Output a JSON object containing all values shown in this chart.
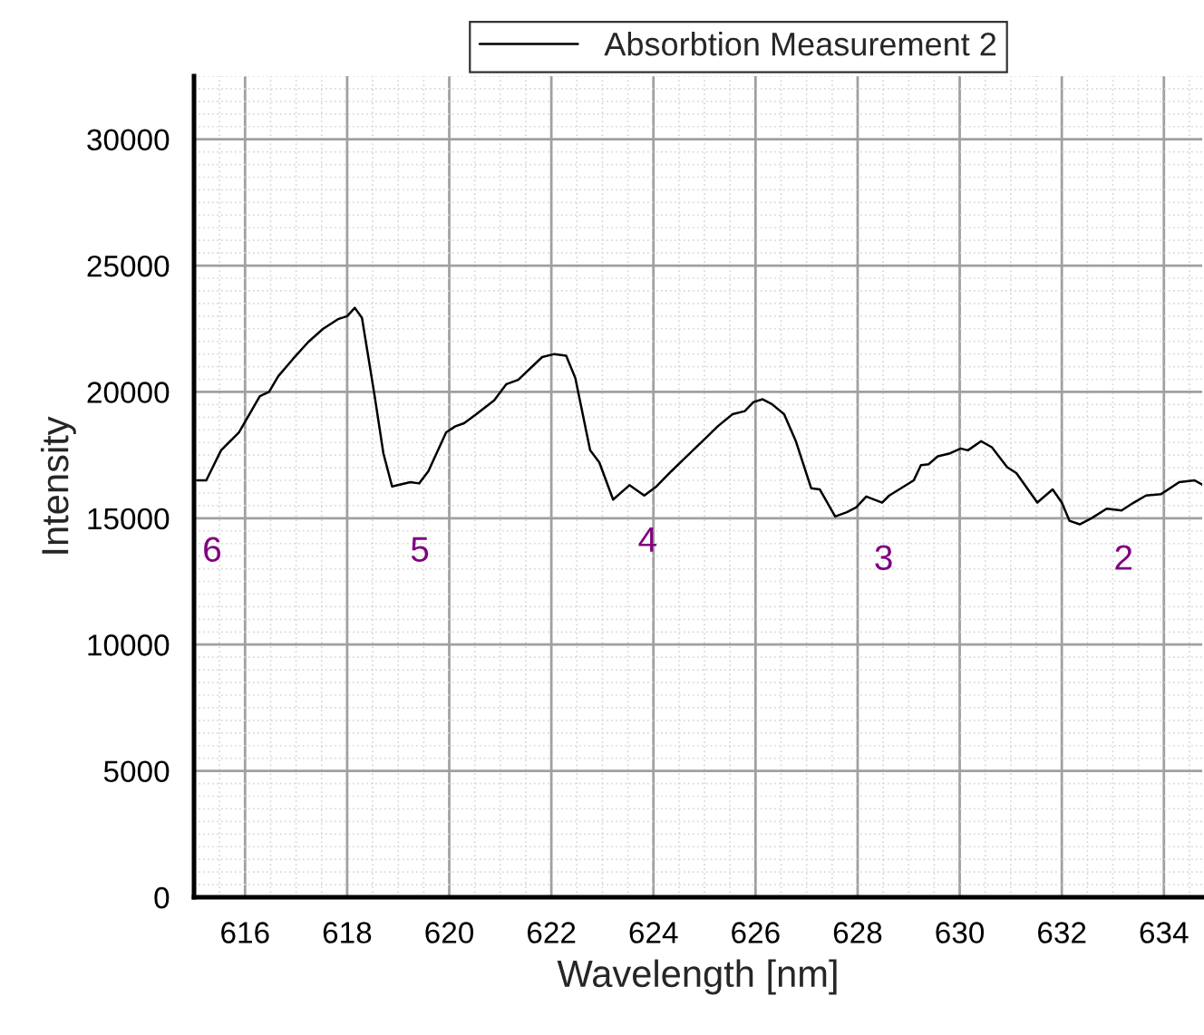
{
  "chart_data": {
    "type": "line",
    "xlabel": "Wavelength [nm]",
    "ylabel": "Intensity",
    "xlim": [
      615,
      634.75
    ],
    "ylim": [
      0,
      32500
    ],
    "xticks": [
      616,
      618,
      620,
      622,
      624,
      626,
      628,
      630,
      632,
      634
    ],
    "yticks": [
      0,
      5000,
      10000,
      15000,
      20000,
      25000,
      30000
    ],
    "grid": true,
    "legend": "top",
    "marker": "none",
    "line_style": "solid",
    "series": [
      {
        "name": "Absorbtion Measurement 2",
        "color": "#000000",
        "x": [
          615.06,
          615.24,
          615.53,
          615.88,
          616.29,
          616.47,
          616.65,
          616.94,
          617.24,
          617.53,
          617.82,
          618.0,
          618.15,
          618.29,
          618.53,
          618.71,
          618.88,
          619.24,
          619.41,
          619.59,
          619.94,
          620.12,
          620.29,
          620.53,
          620.88,
          621.12,
          621.35,
          621.82,
          622.06,
          622.29,
          622.47,
          622.76,
          622.94,
          623.21,
          623.53,
          623.82,
          624.06,
          624.35,
          624.65,
          624.96,
          625.26,
          625.55,
          625.79,
          625.96,
          626.14,
          626.32,
          626.56,
          626.79,
          627.09,
          627.26,
          627.56,
          627.79,
          627.97,
          628.17,
          628.48,
          628.62,
          629.1,
          629.24,
          629.39,
          629.57,
          629.81,
          630.02,
          630.16,
          630.42,
          630.63,
          630.93,
          631.11,
          631.52,
          631.82,
          632.0,
          632.15,
          632.35,
          632.58,
          632.88,
          633.17,
          633.41,
          633.65,
          633.94,
          634.3,
          634.6,
          634.75
        ],
        "values": [
          16500,
          16500,
          17690,
          18400,
          19830,
          20000,
          20620,
          21310,
          21980,
          22500,
          22880,
          23000,
          23330,
          22930,
          19950,
          17570,
          16260,
          16430,
          16380,
          16860,
          18400,
          18640,
          18760,
          19120,
          19670,
          20310,
          20480,
          21380,
          21500,
          21430,
          20550,
          17690,
          17210,
          15740,
          16310,
          15900,
          16260,
          16860,
          17450,
          18050,
          18640,
          19120,
          19240,
          19600,
          19710,
          19520,
          19120,
          18050,
          16190,
          16140,
          15070,
          15240,
          15430,
          15860,
          15620,
          15900,
          16500,
          17100,
          17140,
          17450,
          17570,
          17760,
          17690,
          18050,
          17810,
          17020,
          16790,
          15620,
          16140,
          15620,
          14900,
          14760,
          15000,
          15380,
          15310,
          15620,
          15900,
          15950,
          16430,
          16500,
          16330
        ]
      }
    ],
    "annotations": [
      "6",
      "5",
      "4",
      "3",
      "2"
    ]
  }
}
